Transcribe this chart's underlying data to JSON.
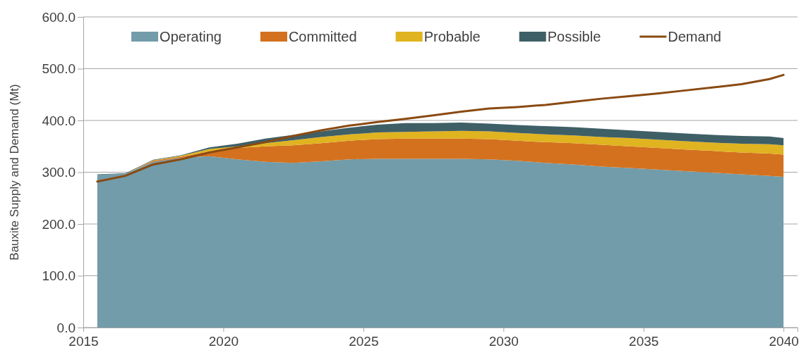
{
  "chart_data": {
    "type": "area",
    "ylabel": "Bauxite Supply and Demand (Mt)",
    "stacked": true,
    "grid": "y",
    "legend": "top",
    "x": [
      2015.5,
      2016.5,
      2017.5,
      2018.5,
      2019.5,
      2020.5,
      2021.5,
      2022.5,
      2023.5,
      2024.5,
      2025.5,
      2026.5,
      2027.5,
      2028.5,
      2029.5,
      2030.5,
      2031.5,
      2032.5,
      2033.5,
      2034.5,
      2035.5,
      2036.5,
      2037.5,
      2038.5,
      2039.5,
      2040
    ],
    "xlim": [
      2015,
      2040.5
    ],
    "xticks": [
      2015,
      2020,
      2025,
      2030,
      2035,
      2040
    ],
    "ylim": [
      0,
      600
    ],
    "yticks": [
      {
        "value": 0,
        "label": "0.0"
      },
      {
        "value": 100,
        "label": "100.0"
      },
      {
        "value": 200,
        "label": "200.0"
      },
      {
        "value": 300,
        "label": "300.0"
      },
      {
        "value": 400,
        "label": "400.0"
      },
      {
        "value": 500,
        "label": "500.0"
      },
      {
        "value": 600,
        "label": "600.0"
      }
    ],
    "series": [
      {
        "name": "Operating",
        "color": "#729ca9",
        "values": [
          295,
          297,
          320,
          328,
          331,
          325,
          320,
          318,
          321,
          325,
          326,
          326,
          326,
          326,
          325,
          322,
          318,
          315,
          311,
          308,
          305,
          302,
          299,
          296,
          293,
          291
        ]
      },
      {
        "name": "Committed",
        "color": "#d4711f",
        "values": [
          0,
          0,
          2,
          2,
          9,
          22,
          30,
          34,
          35,
          36,
          38,
          39,
          39,
          39,
          39,
          39,
          40,
          41,
          42,
          42,
          42,
          42,
          42,
          42,
          43,
          43
        ]
      },
      {
        "name": "Probable",
        "color": "#e0b320",
        "values": [
          0,
          0,
          1,
          2,
          5,
          3,
          6,
          10,
          12,
          12,
          13,
          13,
          14,
          15,
          15,
          15,
          15,
          15,
          15,
          16,
          16,
          16,
          16,
          17,
          18,
          18
        ]
      },
      {
        "name": "Possible",
        "color": "#3f5f66",
        "values": [
          1,
          1,
          1,
          1,
          3,
          5,
          9,
          10,
          11,
          13,
          15,
          17,
          16,
          16,
          15,
          15,
          16,
          16,
          16,
          15,
          15,
          15,
          15,
          15,
          15,
          14
        ]
      },
      {
        "name": "Demand",
        "type": "line",
        "color": "#8a4a12",
        "values": [
          282,
          293,
          315,
          325,
          338,
          348,
          358,
          370,
          381,
          390,
          397,
          403,
          410,
          417,
          423,
          426,
          430,
          436,
          442,
          447,
          452,
          458,
          464,
          470,
          480,
          488
        ]
      }
    ]
  }
}
